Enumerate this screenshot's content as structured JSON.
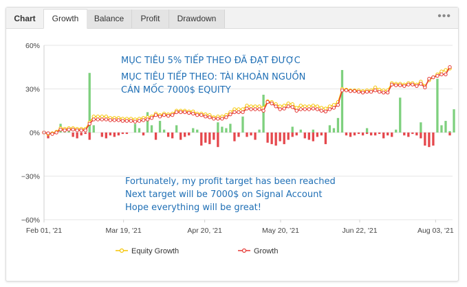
{
  "tabs": {
    "title": "Chart",
    "items": [
      {
        "label": "Growth",
        "active": true
      },
      {
        "label": "Balance",
        "active": false
      },
      {
        "label": "Profit",
        "active": false
      },
      {
        "label": "Drawdown",
        "active": false
      }
    ],
    "menu_icon": "more-dots-icon"
  },
  "annotations": {
    "vi_line1": "MỤC TIÊU 5% TIẾP THEO ĐÃ ĐẠT ĐƯỢC",
    "vi_line2": "MỤC TIÊU TIẾP THEO: TÀI KHOẢN NGUỒN",
    "vi_line3": "CÁN MỐC 7000$ EQUITY",
    "en_line1": "Fortunately, my profit target has been reached",
    "en_line2": "Next target will be 7000$ on Signal Account",
    "en_line3": "Hope everything will be great!"
  },
  "colors": {
    "equity_line": "#f5c400",
    "growth_line": "#e53935",
    "bar_positive": "#7ed07e",
    "bar_negative": "#e5484d",
    "grid": "#e6e6e6",
    "annotation": "#1f6fb5"
  },
  "chart_data": {
    "type": "line",
    "ylim": [
      -60,
      60
    ],
    "yticks": [
      "60%",
      "30%",
      "0%",
      "−30%",
      "−60%"
    ],
    "xticks": [
      "Feb 01, '21",
      "Mar 19, '21",
      "Apr 20, '21",
      "May 20, '21",
      "Jun 22, '21",
      "Aug 03, '21"
    ],
    "grid": true,
    "legend_position": "bottom",
    "series": [
      {
        "name": "Equity Growth",
        "values": [
          0,
          -1,
          -0.5,
          0.5,
          3,
          2.5,
          3,
          3,
          2.5,
          2.5,
          2.5,
          7,
          11,
          11,
          11,
          11,
          10,
          10,
          10,
          9.5,
          9.5,
          9.5,
          9,
          9.5,
          10,
          10.5,
          11,
          13,
          12,
          13,
          12.5,
          13,
          15,
          15,
          15,
          14.5,
          14.5,
          13,
          13,
          12.5,
          12,
          10.5,
          11,
          11,
          12,
          14,
          16,
          16,
          16,
          18.5,
          18,
          18,
          18,
          17,
          21.5,
          21,
          19.5,
          18,
          18.5,
          20,
          19.5,
          17,
          18.5,
          18,
          18,
          18.5,
          18,
          17,
          16.5,
          18,
          19,
          21,
          30,
          29.5,
          29,
          29,
          29,
          28.5,
          29,
          29,
          31,
          29.5,
          29,
          29,
          34,
          33.5,
          33.5,
          33,
          34,
          34,
          33,
          35,
          32,
          36,
          38,
          40,
          42,
          43,
          44
        ]
      },
      {
        "name": "Growth",
        "values": [
          0,
          -0.5,
          -1,
          0,
          2,
          1.5,
          2,
          2,
          1.5,
          1.5,
          1.5,
          6,
          9,
          9,
          9,
          9,
          8.5,
          8.5,
          8.5,
          8,
          8,
          8,
          7.5,
          8,
          8.5,
          9,
          10,
          12,
          11,
          12,
          11.5,
          12,
          14,
          14,
          14,
          13.5,
          13,
          12,
          12,
          11,
          10.5,
          9.5,
          9.5,
          9.5,
          10.5,
          12.5,
          14,
          14,
          14,
          16.5,
          16,
          16,
          16,
          15,
          21,
          20,
          18,
          16,
          16.5,
          18,
          17.5,
          15,
          16,
          16,
          16,
          16.5,
          16,
          15,
          14.5,
          16,
          17,
          19,
          29,
          29,
          28.5,
          28.5,
          28,
          27.5,
          28,
          28,
          29,
          28,
          27.5,
          27.5,
          33,
          32.5,
          32.5,
          32,
          33,
          33,
          32,
          33.5,
          31,
          37,
          38,
          39,
          40,
          40,
          45
        ]
      }
    ],
    "bars_positive": [
      1,
      0,
      0,
      0,
      6,
      3,
      3,
      0,
      0,
      0,
      0,
      41,
      5,
      0,
      0,
      0,
      0,
      0,
      0,
      0,
      0,
      0,
      6,
      3,
      0,
      14,
      5,
      0,
      8,
      2,
      0,
      0,
      5,
      0,
      0,
      0,
      3,
      2,
      0,
      0,
      0,
      0,
      7,
      4,
      3,
      6,
      0,
      0,
      11,
      0,
      0,
      0,
      2,
      26,
      0,
      0,
      0,
      0,
      0,
      0,
      4,
      0,
      2,
      0,
      0,
      2,
      0,
      0,
      0,
      5,
      3,
      10,
      43,
      0,
      0,
      0,
      0,
      0,
      3,
      0,
      0,
      0,
      0,
      0,
      0,
      2,
      24,
      0,
      0,
      0,
      0,
      7,
      0,
      0,
      0,
      37,
      5,
      8,
      1,
      16
    ],
    "bars_negative": [
      0,
      -4,
      -2,
      -1,
      0,
      0,
      0,
      -3,
      -4,
      -2,
      -1,
      -5,
      0,
      0,
      -3,
      -4,
      -2,
      -3,
      -2,
      -1,
      -1,
      0,
      0,
      0,
      -2,
      0,
      0,
      -5,
      0,
      0,
      -3,
      -4,
      0,
      -5,
      -3,
      -2,
      0,
      0,
      -9,
      -7,
      -8,
      -5,
      -10,
      0,
      0,
      0,
      -6,
      -3,
      0,
      -3,
      -2,
      -5,
      0,
      0,
      -7,
      -8,
      -9,
      -6,
      -8,
      -5,
      -3,
      -2,
      0,
      -4,
      -5,
      -6,
      -3,
      -2,
      -8,
      0,
      0,
      0,
      0,
      -2,
      -3,
      -2,
      -1,
      -2,
      -1,
      -2,
      -2,
      -1,
      -4,
      -2,
      -3,
      0,
      0,
      -2,
      -3,
      -1,
      -2,
      -4,
      -9,
      -10,
      -9,
      0,
      0,
      0,
      -2,
      0
    ]
  }
}
